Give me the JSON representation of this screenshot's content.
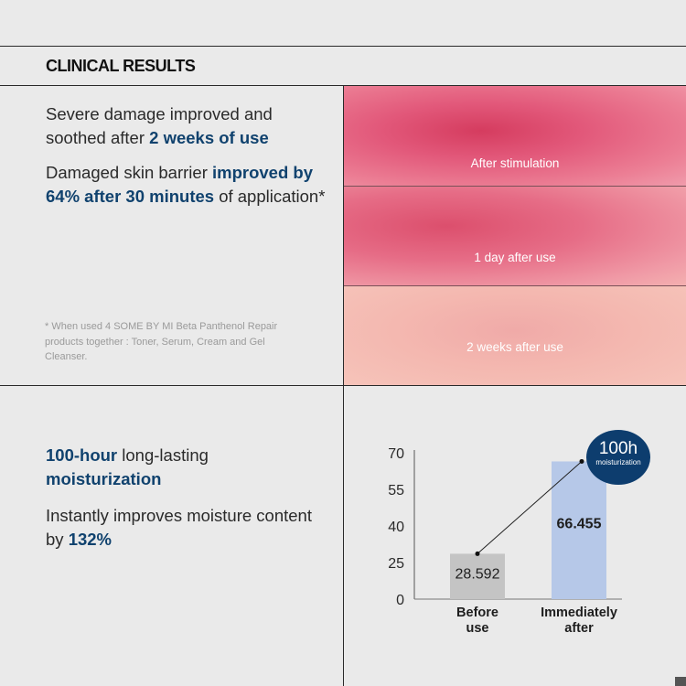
{
  "header": {
    "title": "CLINICAL RESULTS"
  },
  "section1": {
    "claim1": {
      "text_a": "Severe damage improved and soothed after ",
      "highlight": "2 weeks of use"
    },
    "claim2": {
      "text_a": "Damaged skin barrier ",
      "highlight": "improved by 64% after 30 minutes",
      "text_b": " of application*"
    },
    "footnote": "* When used 4 SOME BY MI Beta Panthenol Repair products together : Toner, Serum, Cream and Gel Cleanser."
  },
  "photos": [
    {
      "label": "After stimulation"
    },
    {
      "label": "1 day after use"
    },
    {
      "label": "2 weeks after use"
    }
  ],
  "section2": {
    "claim1": {
      "highlight_a": "100-hour",
      "text": " long-lasting ",
      "highlight_b": "moisturization"
    },
    "claim2": {
      "text": "Instantly improves moisture content by ",
      "highlight": "132%"
    }
  },
  "badge": {
    "main": "100h",
    "sub": "moisturization"
  },
  "chart_data": {
    "type": "bar",
    "categories": [
      "Before use",
      "Immediately after"
    ],
    "values": [
      28.592,
      66.455
    ],
    "value_labels": [
      "28.592",
      "66.455"
    ],
    "yticks": [
      0,
      25,
      40,
      55,
      70
    ],
    "ylim": [
      0,
      70
    ],
    "colors": [
      "#c4c4c4",
      "#b6c8e8"
    ]
  }
}
